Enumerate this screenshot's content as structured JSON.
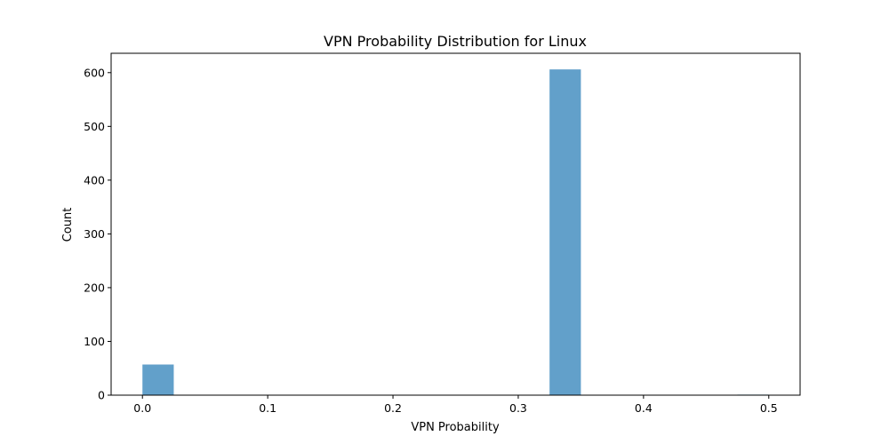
{
  "chart_data": {
    "type": "bar",
    "title": "VPN Probability Distribution for Linux",
    "xlabel": "VPN Probability",
    "ylabel": "Count",
    "xlim": [
      -0.025,
      0.525
    ],
    "ylim": [
      0,
      636
    ],
    "xticks": [
      "0.0",
      "0.1",
      "0.2",
      "0.3",
      "0.4",
      "0.5"
    ],
    "yticks": [
      "0",
      "100",
      "200",
      "300",
      "400",
      "500",
      "600"
    ],
    "bins": [
      {
        "start": 0.0,
        "end": 0.025,
        "count": 57
      },
      {
        "start": 0.325,
        "end": 0.35,
        "count": 606
      },
      {
        "start": 0.475,
        "end": 0.5,
        "count": 1
      }
    ],
    "color": "#1f77b4",
    "grid": false
  }
}
